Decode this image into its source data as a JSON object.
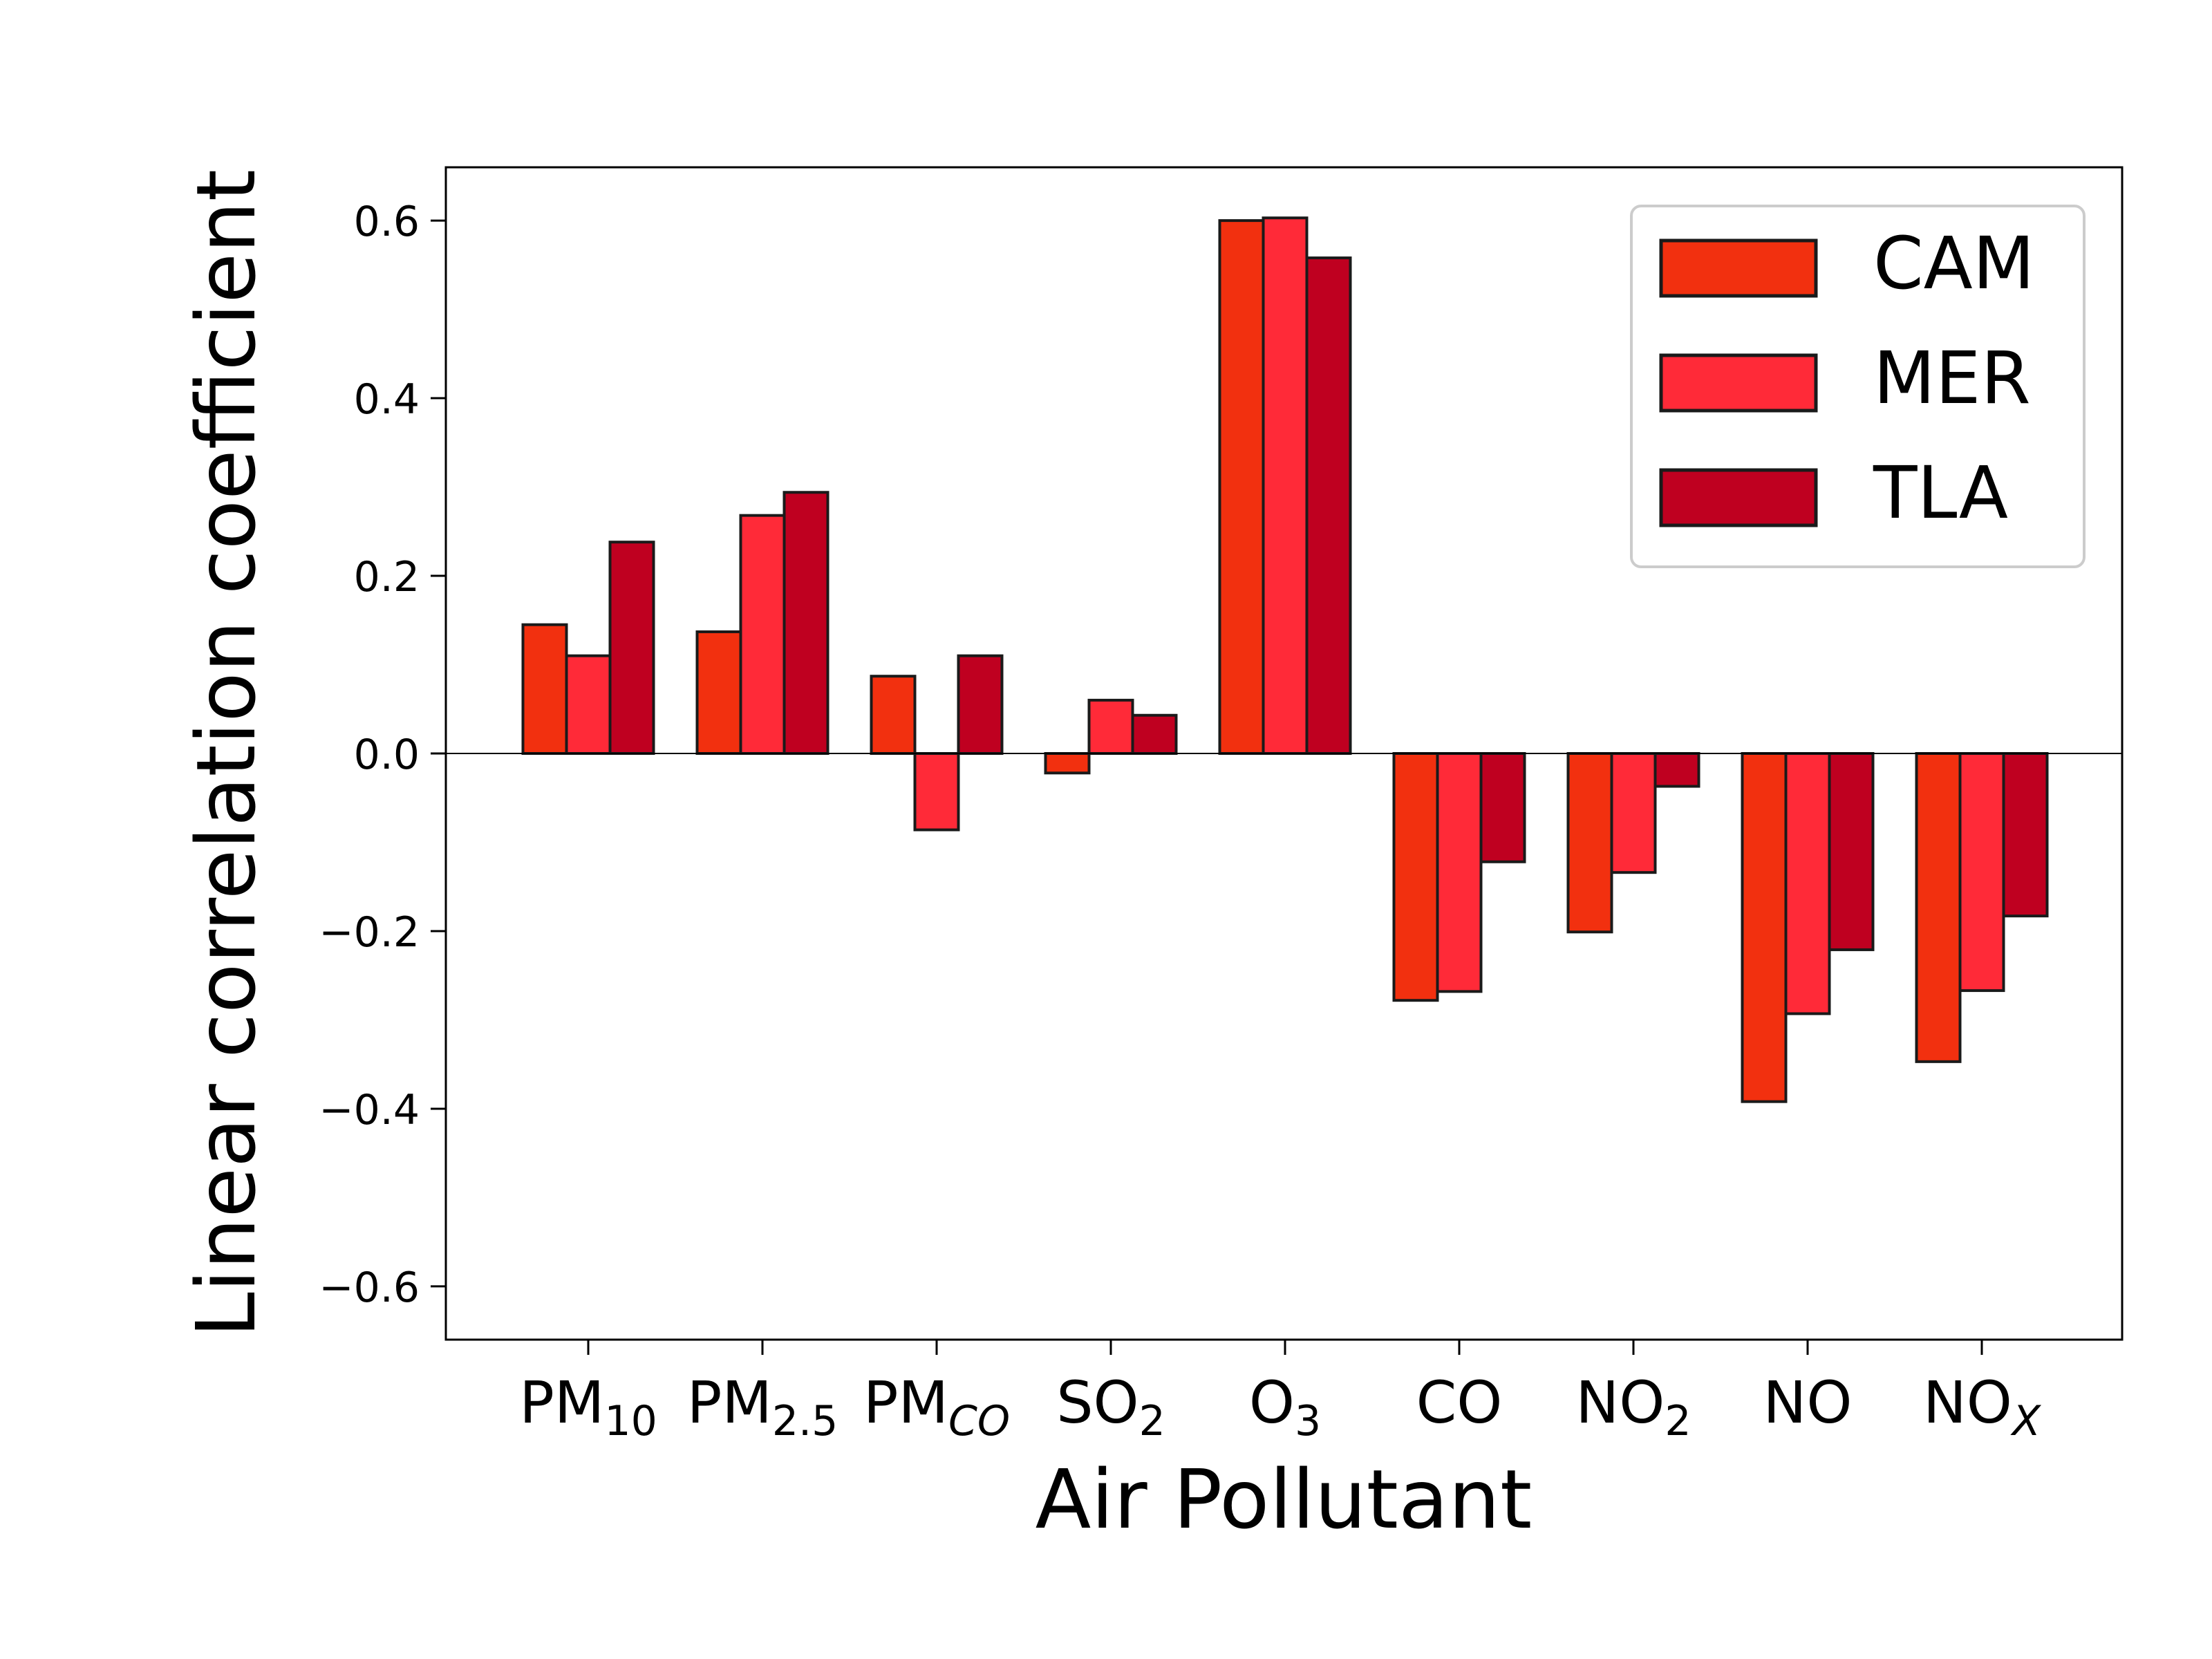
{
  "chart_data": {
    "type": "bar",
    "xlabel": "Air Pollutant",
    "ylabel": "Linear correlation coefficient",
    "categories": [
      {
        "base": "PM",
        "sub": "10",
        "sub_italic": false
      },
      {
        "base": "PM",
        "sub": "2.5",
        "sub_italic": false
      },
      {
        "base": "PM",
        "sub": "CO",
        "sub_italic": true
      },
      {
        "base": "SO",
        "sub": "2",
        "sub_italic": false
      },
      {
        "base": "O",
        "sub": "3",
        "sub_italic": false
      },
      {
        "base": "CO",
        "sub": "",
        "sub_italic": false
      },
      {
        "base": "NO",
        "sub": "2",
        "sub_italic": false
      },
      {
        "base": "NO",
        "sub": "",
        "sub_italic": false
      },
      {
        "base": "NO",
        "sub": "X",
        "sub_italic": true
      }
    ],
    "series": [
      {
        "name": "CAM",
        "color": "#f2300f",
        "values": [
          0.145,
          0.137,
          0.087,
          -0.022,
          0.6,
          -0.278,
          -0.201,
          -0.392,
          -0.347
        ]
      },
      {
        "name": "MER",
        "color": "#ff2a38",
        "values": [
          0.11,
          0.268,
          -0.086,
          0.06,
          0.603,
          -0.268,
          -0.134,
          -0.293,
          -0.267
        ]
      },
      {
        "name": "TLA",
        "color": "#bf0020",
        "values": [
          0.238,
          0.294,
          0.11,
          0.043,
          0.558,
          -0.122,
          -0.037,
          -0.221,
          -0.183
        ]
      }
    ],
    "ylim": [
      -0.66,
      0.66
    ],
    "yticks": [
      -0.6,
      -0.4,
      -0.2,
      0.0,
      0.2,
      0.4,
      0.6
    ],
    "ytick_labels": [
      "−0.6",
      "−0.4",
      "−0.2",
      "0.0",
      "0.2",
      "0.4",
      "0.6"
    ],
    "legend_position": "top-right",
    "grid": false,
    "zero_line": true
  }
}
